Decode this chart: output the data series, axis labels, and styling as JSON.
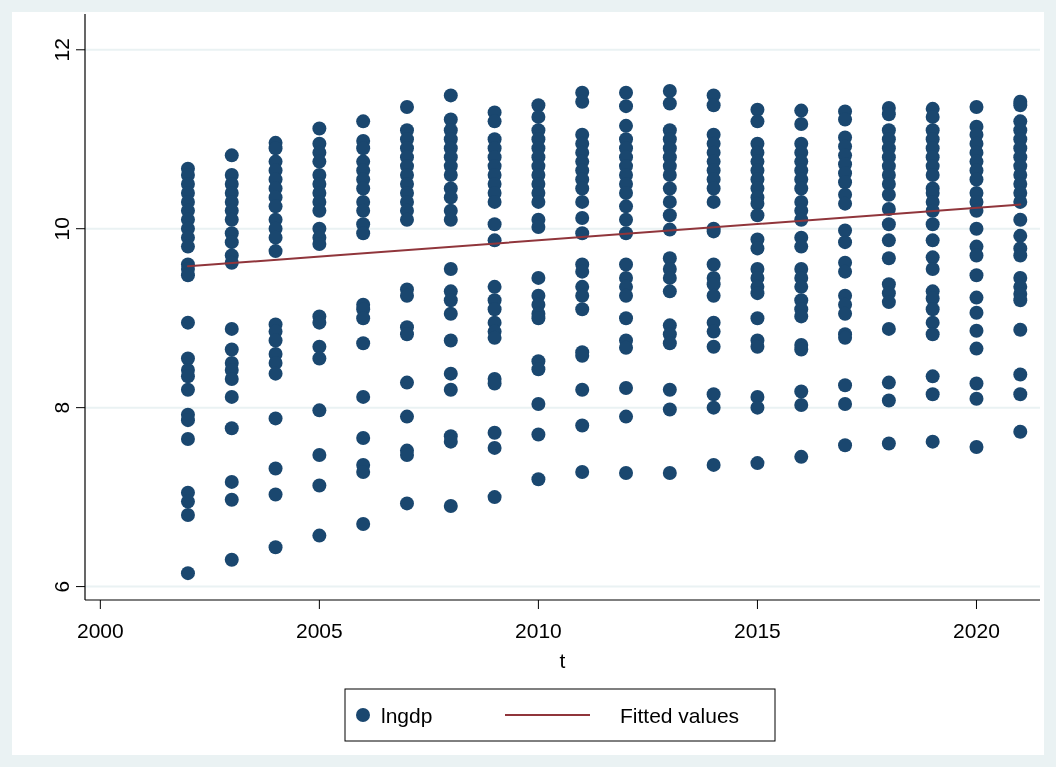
{
  "chart_data": {
    "type": "scatter",
    "xlabel": "t",
    "xlim": [
      1999.65,
      2021.45
    ],
    "xticks": [
      2000,
      2005,
      2010,
      2015,
      2020
    ],
    "ylim": [
      5.85,
      12.4
    ],
    "yticks": [
      6,
      8,
      10,
      12
    ],
    "grid": "y",
    "legend": "bottom",
    "series": [
      {
        "name": "lngdp",
        "marker": "circle",
        "color": "#1a476f",
        "x": [
          2002,
          2002,
          2002,
          2002,
          2002,
          2002,
          2002,
          2002,
          2002,
          2002,
          2002,
          2002,
          2002,
          2002,
          2002,
          2002,
          2002,
          2002,
          2002,
          2002,
          2002,
          2002,
          2002,
          2002,
          2002,
          2003,
          2003,
          2003,
          2003,
          2003,
          2003,
          2003,
          2003,
          2003,
          2003,
          2003,
          2003,
          2003,
          2003,
          2003,
          2003,
          2003,
          2003,
          2003,
          2003,
          2003,
          2004,
          2004,
          2004,
          2004,
          2004,
          2004,
          2004,
          2004,
          2004,
          2004,
          2004,
          2004,
          2004,
          2004,
          2004,
          2004,
          2004,
          2004,
          2004,
          2004,
          2004,
          2004,
          2005,
          2005,
          2005,
          2005,
          2005,
          2005,
          2005,
          2005,
          2005,
          2005,
          2005,
          2005,
          2005,
          2005,
          2005,
          2005,
          2005,
          2005,
          2005,
          2005,
          2006,
          2006,
          2006,
          2006,
          2006,
          2006,
          2006,
          2006,
          2006,
          2006,
          2006,
          2006,
          2006,
          2006,
          2006,
          2006,
          2006,
          2006,
          2006,
          2006,
          2007,
          2007,
          2007,
          2007,
          2007,
          2007,
          2007,
          2007,
          2007,
          2007,
          2007,
          2007,
          2007,
          2007,
          2007,
          2007,
          2007,
          2007,
          2007,
          2007,
          2007,
          2008,
          2008,
          2008,
          2008,
          2008,
          2008,
          2008,
          2008,
          2008,
          2008,
          2008,
          2008,
          2008,
          2008,
          2008,
          2008,
          2008,
          2008,
          2008,
          2008,
          2008,
          2008,
          2009,
          2009,
          2009,
          2009,
          2009,
          2009,
          2009,
          2009,
          2009,
          2009,
          2009,
          2009,
          2009,
          2009,
          2009,
          2009,
          2009,
          2009,
          2009,
          2009,
          2009,
          2009,
          2009,
          2010,
          2010,
          2010,
          2010,
          2010,
          2010,
          2010,
          2010,
          2010,
          2010,
          2010,
          2010,
          2010,
          2010,
          2010,
          2010,
          2010,
          2010,
          2010,
          2010,
          2010,
          2010,
          2010,
          2011,
          2011,
          2011,
          2011,
          2011,
          2011,
          2011,
          2011,
          2011,
          2011,
          2011,
          2011,
          2011,
          2011,
          2011,
          2011,
          2011,
          2011,
          2011,
          2011,
          2011,
          2011,
          2012,
          2012,
          2012,
          2012,
          2012,
          2012,
          2012,
          2012,
          2012,
          2012,
          2012,
          2012,
          2012,
          2012,
          2012,
          2012,
          2012,
          2012,
          2012,
          2012,
          2012,
          2012,
          2012,
          2013,
          2013,
          2013,
          2013,
          2013,
          2013,
          2013,
          2013,
          2013,
          2013,
          2013,
          2013,
          2013,
          2013,
          2013,
          2013,
          2013,
          2013,
          2013,
          2013,
          2013,
          2013,
          2014,
          2014,
          2014,
          2014,
          2014,
          2014,
          2014,
          2014,
          2014,
          2014,
          2014,
          2014,
          2014,
          2014,
          2014,
          2014,
          2014,
          2014,
          2014,
          2014,
          2014,
          2014,
          2015,
          2015,
          2015,
          2015,
          2015,
          2015,
          2015,
          2015,
          2015,
          2015,
          2015,
          2015,
          2015,
          2015,
          2015,
          2015,
          2015,
          2015,
          2015,
          2015,
          2015,
          2015,
          2015,
          2016,
          2016,
          2016,
          2016,
          2016,
          2016,
          2016,
          2016,
          2016,
          2016,
          2016,
          2016,
          2016,
          2016,
          2016,
          2016,
          2016,
          2016,
          2016,
          2016,
          2016,
          2016,
          2016,
          2016,
          2017,
          2017,
          2017,
          2017,
          2017,
          2017,
          2017,
          2017,
          2017,
          2017,
          2017,
          2017,
          2017,
          2017,
          2017,
          2017,
          2017,
          2017,
          2017,
          2017,
          2017,
          2017,
          2018,
          2018,
          2018,
          2018,
          2018,
          2018,
          2018,
          2018,
          2018,
          2018,
          2018,
          2018,
          2018,
          2018,
          2018,
          2018,
          2018,
          2018,
          2018,
          2018,
          2018,
          2019,
          2019,
          2019,
          2019,
          2019,
          2019,
          2019,
          2019,
          2019,
          2019,
          2019,
          2019,
          2019,
          2019,
          2019,
          2019,
          2019,
          2019,
          2019,
          2019,
          2019,
          2019,
          2019,
          2019,
          2020,
          2020,
          2020,
          2020,
          2020,
          2020,
          2020,
          2020,
          2020,
          2020,
          2020,
          2020,
          2020,
          2020,
          2020,
          2020,
          2020,
          2020,
          2020,
          2020,
          2020,
          2020,
          2021,
          2021,
          2021,
          2021,
          2021,
          2021,
          2021,
          2021,
          2021,
          2021,
          2021,
          2021,
          2021,
          2021,
          2021,
          2021,
          2021,
          2021,
          2021,
          2021,
          2021,
          2021,
          2021,
          2021
        ],
        "values": [
          10.67,
          10.6,
          10.5,
          10.4,
          10.3,
          10.2,
          10.1,
          10.0,
          9.9,
          9.8,
          9.6,
          9.55,
          9.48,
          8.95,
          8.55,
          8.42,
          8.35,
          8.2,
          7.92,
          7.86,
          7.65,
          7.05,
          6.95,
          6.8,
          6.15,
          10.82,
          10.6,
          10.5,
          10.4,
          10.3,
          10.2,
          10.1,
          9.95,
          9.85,
          9.7,
          9.62,
          8.88,
          8.65,
          8.5,
          8.42,
          8.32,
          8.12,
          7.77,
          7.17,
          6.97,
          6.3,
          10.96,
          10.9,
          10.75,
          10.65,
          10.55,
          10.45,
          10.35,
          10.25,
          10.1,
          10.0,
          9.9,
          9.75,
          8.93,
          8.85,
          8.75,
          8.6,
          8.5,
          8.38,
          7.88,
          7.32,
          7.03,
          6.44,
          11.12,
          10.95,
          10.85,
          10.75,
          10.6,
          10.5,
          10.4,
          10.3,
          10.2,
          10.0,
          9.9,
          9.83,
          9.02,
          8.95,
          8.68,
          8.55,
          7.97,
          7.47,
          7.13,
          6.57,
          11.2,
          10.98,
          10.9,
          10.75,
          10.65,
          10.55,
          10.45,
          10.3,
          10.2,
          10.05,
          9.95,
          9.15,
          9.1,
          9.0,
          8.72,
          8.12,
          7.66,
          7.36,
          7.28,
          6.7,
          11.36,
          11.1,
          11.0,
          10.9,
          10.8,
          10.7,
          10.6,
          10.5,
          10.4,
          10.3,
          10.2,
          10.1,
          9.32,
          9.25,
          8.9,
          8.82,
          8.28,
          7.9,
          7.52,
          7.47,
          6.93,
          11.49,
          11.22,
          11.1,
          11.0,
          10.9,
          10.8,
          10.7,
          10.6,
          10.45,
          10.35,
          10.2,
          10.1,
          9.55,
          9.3,
          9.2,
          9.05,
          8.75,
          8.38,
          8.2,
          7.68,
          7.62,
          6.9,
          11.3,
          11.2,
          11.0,
          10.9,
          10.8,
          10.7,
          10.6,
          10.5,
          10.4,
          10.3,
          10.05,
          9.87,
          9.35,
          9.2,
          9.1,
          8.95,
          8.85,
          8.78,
          8.32,
          8.27,
          7.72,
          7.55,
          7.0,
          11.38,
          11.25,
          11.1,
          11.0,
          10.9,
          10.8,
          10.7,
          10.6,
          10.5,
          10.4,
          10.3,
          10.1,
          10.02,
          9.45,
          9.25,
          9.15,
          9.05,
          9.0,
          8.52,
          8.43,
          8.04,
          7.7,
          7.2,
          11.52,
          11.42,
          11.05,
          10.95,
          10.85,
          10.75,
          10.65,
          10.55,
          10.45,
          10.3,
          10.12,
          9.95,
          9.6,
          9.52,
          9.35,
          9.25,
          9.1,
          8.62,
          8.58,
          8.2,
          7.8,
          7.28,
          11.52,
          11.37,
          11.15,
          11.0,
          10.9,
          10.8,
          10.7,
          10.6,
          10.5,
          10.4,
          10.25,
          10.1,
          9.95,
          9.6,
          9.45,
          9.35,
          9.25,
          9.0,
          8.75,
          8.67,
          8.22,
          7.9,
          7.27,
          11.54,
          11.4,
          11.1,
          11.0,
          10.9,
          10.8,
          10.7,
          10.6,
          10.45,
          10.3,
          10.15,
          9.99,
          9.67,
          9.55,
          9.45,
          9.3,
          8.92,
          8.82,
          8.72,
          8.2,
          7.98,
          7.27,
          11.49,
          11.38,
          11.05,
          10.95,
          10.85,
          10.75,
          10.65,
          10.55,
          10.45,
          10.3,
          10.0,
          9.97,
          9.6,
          9.45,
          9.38,
          9.25,
          8.95,
          8.85,
          8.68,
          8.15,
          8.0,
          7.36,
          11.33,
          11.2,
          10.95,
          10.85,
          10.75,
          10.65,
          10.55,
          10.45,
          10.35,
          10.28,
          10.15,
          9.88,
          9.78,
          9.55,
          9.45,
          9.35,
          9.28,
          9.0,
          8.75,
          8.68,
          8.12,
          8.0,
          7.38,
          11.32,
          11.17,
          10.95,
          10.85,
          10.75,
          10.65,
          10.55,
          10.45,
          10.3,
          10.2,
          10.1,
          9.9,
          9.8,
          9.55,
          9.45,
          9.35,
          9.2,
          9.1,
          9.02,
          8.7,
          8.65,
          8.18,
          8.03,
          7.45,
          11.31,
          11.22,
          11.02,
          10.92,
          10.82,
          10.72,
          10.62,
          10.52,
          10.38,
          10.28,
          9.98,
          9.85,
          9.62,
          9.52,
          9.25,
          9.15,
          9.05,
          8.82,
          8.78,
          8.25,
          8.04,
          7.58,
          11.35,
          11.28,
          11.1,
          11.0,
          10.9,
          10.8,
          10.7,
          10.6,
          10.5,
          10.38,
          10.22,
          10.05,
          9.87,
          9.67,
          9.38,
          9.28,
          9.18,
          8.88,
          8.28,
          8.08,
          7.6,
          11.34,
          11.25,
          11.1,
          11.0,
          10.9,
          10.8,
          10.7,
          10.6,
          10.45,
          10.4,
          10.3,
          10.2,
          10.05,
          9.87,
          9.68,
          9.55,
          9.3,
          9.22,
          9.1,
          8.95,
          8.82,
          8.35,
          8.15,
          7.62,
          11.36,
          11.14,
          11.05,
          10.95,
          10.85,
          10.75,
          10.65,
          10.55,
          10.4,
          10.3,
          10.2,
          10.0,
          9.8,
          9.7,
          9.48,
          9.23,
          9.06,
          8.86,
          8.66,
          8.27,
          8.1,
          7.56,
          11.42,
          11.38,
          11.2,
          11.1,
          11.0,
          10.9,
          10.8,
          10.7,
          10.6,
          10.5,
          10.4,
          10.3,
          10.1,
          9.92,
          9.78,
          9.7,
          9.45,
          9.35,
          9.27,
          9.2,
          8.87,
          8.37,
          8.15,
          7.73
        ]
      },
      {
        "name": "Fitted values",
        "type": "line",
        "marker": "none",
        "color": "#90353b",
        "x": [
          2002,
          2021
        ],
        "values": [
          9.58,
          10.27
        ]
      }
    ]
  }
}
